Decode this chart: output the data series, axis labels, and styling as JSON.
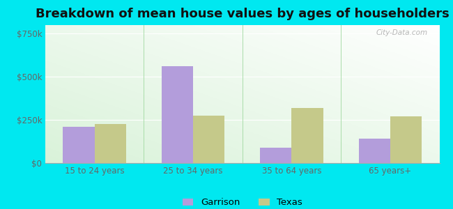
{
  "title": "Breakdown of mean house values by ages of householders",
  "categories": [
    "15 to 24 years",
    "25 to 34 years",
    "35 to 64 years",
    "65 years+"
  ],
  "garrison_values": [
    210000,
    560000,
    90000,
    140000
  ],
  "texas_values": [
    225000,
    275000,
    320000,
    270000
  ],
  "garrison_color": "#b39ddb",
  "texas_color": "#c5c98a",
  "outer_background": "#00e8f0",
  "plot_bg_top_left": "#c8e6c9",
  "plot_bg_bottom_right": "#f5f9ee",
  "ylim": [
    0,
    800000
  ],
  "yticks": [
    0,
    250000,
    500000,
    750000
  ],
  "ytick_labels": [
    "$0",
    "$250k",
    "$500k",
    "$750k"
  ],
  "legend_labels": [
    "Garrison",
    "Texas"
  ],
  "bar_width": 0.32,
  "watermark": "City-Data.com",
  "title_fontsize": 13,
  "tick_fontsize": 8.5,
  "legend_fontsize": 9.5
}
